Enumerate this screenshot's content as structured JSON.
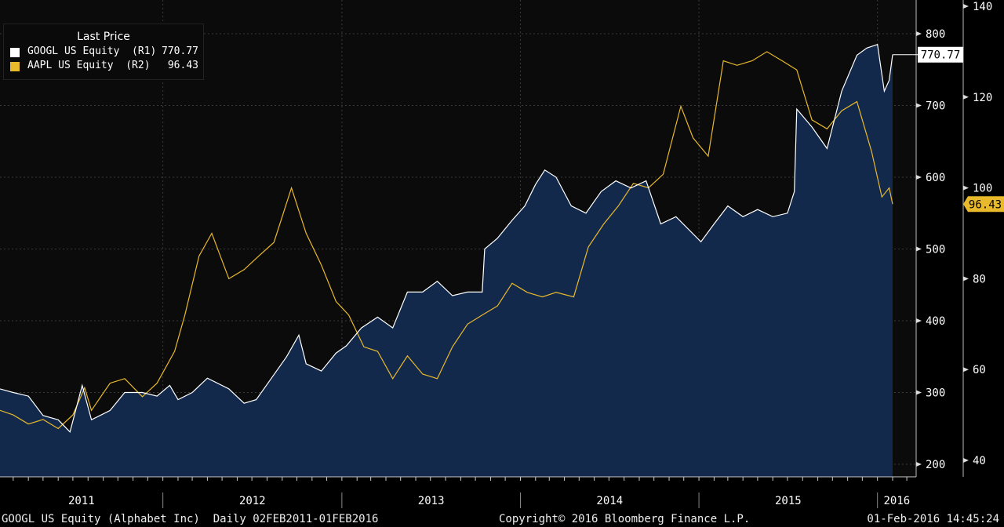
{
  "legend": {
    "title": "Last Price",
    "items": [
      {
        "name": "GOOGL US Equity  (R1)",
        "value": "770.77",
        "color": "#ffffff"
      },
      {
        "name": "AAPL US Equity  (R2)",
        "value": "96.43",
        "color": "#e8b92b"
      }
    ]
  },
  "footer": {
    "left": "GOOGL US Equity (Alphabet Inc)  Daily 02FEB2011-01FEB2016",
    "center": "Copyright© 2016 Bloomberg Finance L.P.",
    "right": "01-Feb-2016 14:45:24"
  },
  "chart_data": {
    "type": "line",
    "x_label_years": [
      "2011",
      "2012",
      "2013",
      "2014",
      "2015",
      "2016"
    ],
    "x_range": [
      "2011-02-02",
      "2016-02-01"
    ],
    "axis_r1": {
      "range": [
        200,
        850
      ],
      "ticks": [
        200,
        300,
        400,
        500,
        600,
        700,
        800
      ]
    },
    "axis_r2": {
      "range": [
        35,
        140
      ],
      "ticks": [
        40,
        60,
        80,
        100,
        120,
        140
      ]
    },
    "grid": true,
    "legend_position": "top-left",
    "series": [
      {
        "name": "GOOGL US Equity",
        "axis": "R1",
        "color": "#ffffff",
        "fill": "#13294b",
        "last_value": "770.77",
        "points": [
          [
            "2011-02-02",
            305
          ],
          [
            "2011-03-01",
            300
          ],
          [
            "2011-04-01",
            295
          ],
          [
            "2011-05-01",
            268
          ],
          [
            "2011-06-01",
            262
          ],
          [
            "2011-06-25",
            245
          ],
          [
            "2011-07-20",
            310
          ],
          [
            "2011-08-08",
            262
          ],
          [
            "2011-09-15",
            275
          ],
          [
            "2011-10-15",
            300
          ],
          [
            "2011-11-20",
            300
          ],
          [
            "2011-12-20",
            295
          ],
          [
            "2012-01-15",
            310
          ],
          [
            "2012-02-01",
            290
          ],
          [
            "2012-03-01",
            300
          ],
          [
            "2012-04-01",
            320
          ],
          [
            "2012-05-15",
            305
          ],
          [
            "2012-06-15",
            285
          ],
          [
            "2012-07-10",
            290
          ],
          [
            "2012-08-10",
            320
          ],
          [
            "2012-09-10",
            350
          ],
          [
            "2012-10-05",
            380
          ],
          [
            "2012-10-20",
            340
          ],
          [
            "2012-11-20",
            330
          ],
          [
            "2012-12-20",
            355
          ],
          [
            "2013-01-10",
            365
          ],
          [
            "2013-02-10",
            390
          ],
          [
            "2013-03-15",
            405
          ],
          [
            "2013-04-15",
            390
          ],
          [
            "2013-05-15",
            440
          ],
          [
            "2013-06-15",
            440
          ],
          [
            "2013-07-15",
            455
          ],
          [
            "2013-08-15",
            435
          ],
          [
            "2013-09-15",
            440
          ],
          [
            "2013-10-15",
            440
          ],
          [
            "2013-10-20",
            500
          ],
          [
            "2013-11-15",
            515
          ],
          [
            "2013-12-15",
            540
          ],
          [
            "2014-01-10",
            560
          ],
          [
            "2014-02-01",
            590
          ],
          [
            "2014-02-20",
            610
          ],
          [
            "2014-03-15",
            600
          ],
          [
            "2014-04-15",
            560
          ],
          [
            "2014-05-15",
            550
          ],
          [
            "2014-06-15",
            580
          ],
          [
            "2014-07-15",
            595
          ],
          [
            "2014-08-15",
            585
          ],
          [
            "2014-09-15",
            595
          ],
          [
            "2014-10-15",
            535
          ],
          [
            "2014-11-15",
            545
          ],
          [
            "2015-01-05",
            510
          ],
          [
            "2015-02-01",
            535
          ],
          [
            "2015-03-01",
            560
          ],
          [
            "2015-04-01",
            545
          ],
          [
            "2015-05-01",
            555
          ],
          [
            "2015-06-01",
            545
          ],
          [
            "2015-07-01",
            550
          ],
          [
            "2015-07-15",
            580
          ],
          [
            "2015-07-20",
            695
          ],
          [
            "2015-08-20",
            670
          ],
          [
            "2015-09-20",
            640
          ],
          [
            "2015-10-20",
            720
          ],
          [
            "2015-11-20",
            770
          ],
          [
            "2015-12-10",
            780
          ],
          [
            "2016-01-01",
            785
          ],
          [
            "2016-01-15",
            720
          ],
          [
            "2016-01-25",
            735
          ],
          [
            "2016-02-01",
            770.77
          ]
        ]
      },
      {
        "name": "AAPL US Equity",
        "axis": "R2",
        "color": "#e8b92b",
        "last_value": "96.43",
        "points": [
          [
            "2011-02-02",
            51
          ],
          [
            "2011-03-01",
            50
          ],
          [
            "2011-04-01",
            48
          ],
          [
            "2011-05-01",
            49
          ],
          [
            "2011-06-01",
            47
          ],
          [
            "2011-07-01",
            50
          ],
          [
            "2011-07-25",
            56
          ],
          [
            "2011-08-08",
            51
          ],
          [
            "2011-09-15",
            57
          ],
          [
            "2011-10-15",
            58
          ],
          [
            "2011-11-20",
            54
          ],
          [
            "2011-12-20",
            57
          ],
          [
            "2012-01-25",
            64
          ],
          [
            "2012-02-15",
            72
          ],
          [
            "2012-03-15",
            85
          ],
          [
            "2012-04-10",
            90
          ],
          [
            "2012-05-15",
            80
          ],
          [
            "2012-06-15",
            82
          ],
          [
            "2012-07-15",
            85
          ],
          [
            "2012-08-15",
            88
          ],
          [
            "2012-09-20",
            100
          ],
          [
            "2012-10-20",
            90
          ],
          [
            "2012-11-20,",
            83
          ],
          [
            "2012-12-20",
            75
          ],
          [
            "2013-01-15",
            72
          ],
          [
            "2013-02-15",
            65
          ],
          [
            "2013-03-15",
            64
          ],
          [
            "2013-04-15",
            58
          ],
          [
            "2013-05-15",
            63
          ],
          [
            "2013-06-15",
            59
          ],
          [
            "2013-07-15",
            58
          ],
          [
            "2013-08-15",
            65
          ],
          [
            "2013-09-15",
            70
          ],
          [
            "2013-10-15",
            72
          ],
          [
            "2013-11-15",
            74
          ],
          [
            "2013-12-15",
            79
          ],
          [
            "2014-01-15",
            77
          ],
          [
            "2014-02-15",
            76
          ],
          [
            "2014-03-15",
            77
          ],
          [
            "2014-04-20",
            76
          ],
          [
            "2014-05-20",
            87
          ],
          [
            "2014-06-20",
            92
          ],
          [
            "2014-07-20",
            96
          ],
          [
            "2014-08-20",
            101
          ],
          [
            "2014-09-20",
            100
          ],
          [
            "2014-10-20",
            103
          ],
          [
            "2014-11-25",
            118
          ],
          [
            "2014-12-20",
            111
          ],
          [
            "2015-01-20",
            107
          ],
          [
            "2015-02-20",
            128
          ],
          [
            "2015-03-20",
            127
          ],
          [
            "2015-04-20",
            128
          ],
          [
            "2015-05-20",
            130
          ],
          [
            "2015-06-20",
            128
          ],
          [
            "2015-07-20",
            126
          ],
          [
            "2015-08-20",
            115
          ],
          [
            "2015-09-20",
            113
          ],
          [
            "2015-10-20",
            117
          ],
          [
            "2015-11-20",
            119
          ],
          [
            "2015-12-20",
            108
          ],
          [
            "2016-01-10",
            98
          ],
          [
            "2016-01-25",
            100
          ],
          [
            "2016-02-01",
            96.43
          ]
        ]
      }
    ]
  }
}
